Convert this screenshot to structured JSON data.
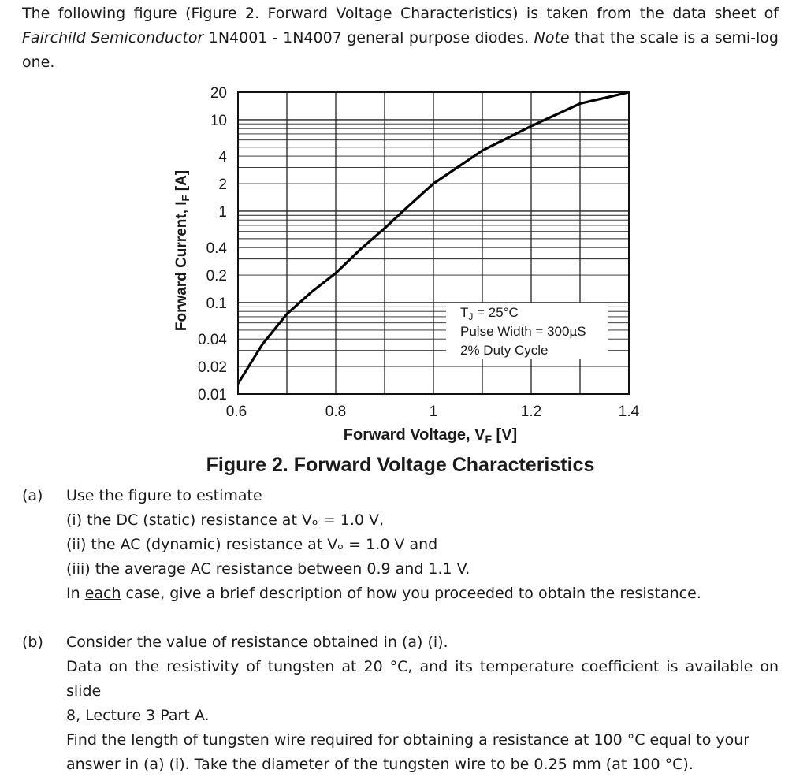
{
  "intro": {
    "part1": "The following figure (Figure 2. Forward Voltage Characteristics) is taken from the data sheet of",
    "manufacturer": "Fairchild Semiconductor",
    "part2": " 1N4001 - 1N4007 general purpose diodes. ",
    "note_word": "Note",
    "part3": " that the scale is a semi-log one."
  },
  "chart_data": {
    "type": "line",
    "title": "Figure 2. Forward Voltage Characteristics",
    "xlabel": "Forward Voltage, V",
    "xlabel_sub": "F",
    "xlabel_unit": " [V]",
    "ylabel": "Forward Current, I",
    "ylabel_sub": "F",
    "ylabel_unit": " [A]",
    "xlim": [
      0.6,
      1.4
    ],
    "ylim": [
      0.01,
      20
    ],
    "yscale": "log",
    "x_ticks": [
      "0.6",
      "0.8",
      "1",
      "1.2",
      "1.4"
    ],
    "x_tick_values": [
      0.6,
      0.8,
      1.0,
      1.2,
      1.4
    ],
    "y_ticks": [
      "20",
      "10",
      "4",
      "2",
      "1",
      "0.4",
      "0.2",
      "0.1",
      "0.04",
      "0.02",
      "0.01"
    ],
    "y_tick_values": [
      20,
      10,
      4,
      2,
      1,
      0.4,
      0.2,
      0.1,
      0.04,
      0.02,
      0.01
    ],
    "grid": true,
    "annotation": [
      "T_J = 25°C",
      "Pulse Width = 300µS",
      "2% Duty Cycle"
    ],
    "series": [
      {
        "x": [
          0.6,
          0.65,
          0.7,
          0.75,
          0.8,
          0.85,
          0.9,
          0.95,
          1.0,
          1.1,
          1.2,
          1.3,
          1.4
        ],
        "y": [
          0.013,
          0.035,
          0.075,
          0.13,
          0.21,
          0.38,
          0.65,
          1.15,
          2.0,
          4.6,
          8.5,
          15,
          20
        ]
      }
    ]
  },
  "questions": [
    {
      "label": "(a)",
      "lines": [
        "Use the figure to estimate",
        "(i) the DC (static) resistance at Vₒ = 1.0 V,",
        "(ii) the AC (dynamic) resistance at Vₒ = 1.0 V and",
        "(iii) the average AC resistance between 0.9 and 1.1 V."
      ],
      "last_pre": "In ",
      "last_u": "each",
      "last_post": " case, give a brief description of how you proceeded to obtain the resistance."
    },
    {
      "label": "(b)",
      "lines": [
        "Consider the value of resistance obtained in (a) (i).",
        "Data on the resistivity of tungsten at 20 °C, and its temperature coefficient is available on slide",
        "8, Lecture 3 Part A.",
        "Find the length of tungsten wire required for obtaining a resistance at 100 °C equal to your",
        "answer in (a) (i). Take the diameter of the tungsten wire to be 0.25 mm (at 100 °C)."
      ]
    }
  ]
}
